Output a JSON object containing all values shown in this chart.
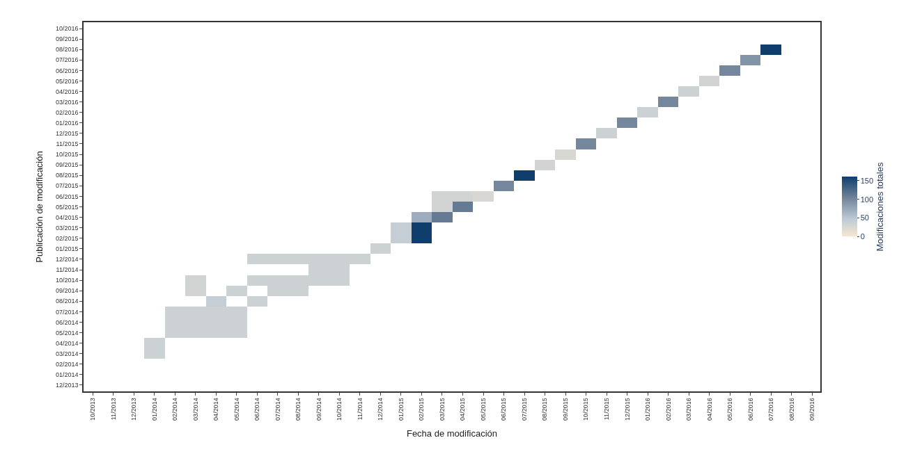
{
  "chart_data": {
    "type": "heatmap",
    "xlabel": "Fecha de modificación",
    "ylabel": "Publicación de modificación",
    "clabel": "Modificaciones totales",
    "categories": [
      "10/2013",
      "11/2013",
      "12/2013",
      "01/2014",
      "02/2014",
      "03/2014",
      "04/2014",
      "05/2014",
      "06/2014",
      "07/2014",
      "08/2014",
      "09/2014",
      "10/2014",
      "11/2014",
      "12/2014",
      "01/2015",
      "02/2015",
      "03/2015",
      "04/2015",
      "05/2015",
      "06/2015",
      "07/2015",
      "08/2015",
      "09/2015",
      "10/2015",
      "11/2015",
      "12/2015",
      "01/2016",
      "02/2016",
      "03/2016",
      "04/2016",
      "05/2016",
      "06/2016",
      "07/2016",
      "08/2016",
      "09/2016"
    ],
    "y_categories": [
      "10/2016",
      "09/2016",
      "08/2016",
      "07/2016",
      "06/2016",
      "05/2016",
      "04/2016",
      "03/2016",
      "02/2016",
      "01/2016",
      "12/2015",
      "11/2015",
      "10/2015",
      "09/2015",
      "08/2015",
      "07/2015",
      "06/2015",
      "05/2015",
      "04/2015",
      "03/2015",
      "02/2015",
      "01/2015",
      "12/2014",
      "11/2014",
      "10/2014",
      "09/2014",
      "08/2014",
      "07/2014",
      "06/2014",
      "05/2014",
      "04/2014",
      "03/2014",
      "02/2014",
      "01/2014",
      "12/2013"
    ],
    "cells": [
      [
        null,
        null,
        null,
        null,
        null,
        null,
        null,
        null,
        null,
        null,
        null,
        null,
        null,
        null,
        null,
        null,
        null,
        null,
        null,
        null,
        null,
        null,
        null,
        null,
        null,
        null,
        null,
        null,
        null,
        null,
        null,
        null,
        null,
        null,
        null,
        null
      ],
      [
        null,
        null,
        null,
        null,
        null,
        null,
        null,
        null,
        null,
        null,
        null,
        null,
        null,
        null,
        null,
        null,
        null,
        null,
        null,
        null,
        null,
        null,
        null,
        null,
        null,
        null,
        null,
        null,
        null,
        null,
        null,
        null,
        null,
        null,
        null,
        null
      ],
      [
        null,
        null,
        null,
        null,
        null,
        null,
        null,
        null,
        null,
        null,
        null,
        null,
        null,
        null,
        null,
        null,
        null,
        null,
        null,
        null,
        null,
        null,
        null,
        null,
        null,
        null,
        null,
        null,
        null,
        null,
        null,
        null,
        null,
        160,
        null,
        null
      ],
      [
        null,
        null,
        null,
        null,
        null,
        null,
        null,
        null,
        null,
        null,
        null,
        null,
        null,
        null,
        null,
        null,
        null,
        null,
        null,
        null,
        null,
        null,
        null,
        null,
        null,
        null,
        null,
        null,
        null,
        null,
        null,
        null,
        90,
        null,
        null,
        null
      ],
      [
        null,
        null,
        null,
        null,
        null,
        null,
        null,
        null,
        null,
        null,
        null,
        null,
        null,
        null,
        null,
        null,
        null,
        null,
        null,
        null,
        null,
        null,
        null,
        null,
        null,
        null,
        null,
        null,
        null,
        null,
        null,
        100,
        null,
        null,
        null,
        null
      ],
      [
        null,
        null,
        null,
        null,
        null,
        null,
        null,
        null,
        null,
        null,
        null,
        null,
        null,
        null,
        null,
        null,
        null,
        null,
        null,
        null,
        null,
        null,
        null,
        null,
        null,
        null,
        null,
        null,
        null,
        null,
        30,
        null,
        null,
        null,
        null,
        null
      ],
      [
        null,
        null,
        null,
        null,
        null,
        null,
        null,
        null,
        null,
        null,
        null,
        null,
        null,
        null,
        null,
        null,
        null,
        null,
        null,
        null,
        null,
        null,
        null,
        null,
        null,
        null,
        null,
        null,
        null,
        35,
        null,
        null,
        null,
        null,
        null,
        null
      ],
      [
        null,
        null,
        null,
        null,
        null,
        null,
        null,
        null,
        null,
        null,
        null,
        null,
        null,
        null,
        null,
        null,
        null,
        null,
        null,
        null,
        null,
        null,
        null,
        null,
        null,
        null,
        null,
        null,
        100,
        null,
        null,
        null,
        null,
        null,
        null,
        null
      ],
      [
        null,
        null,
        null,
        null,
        null,
        null,
        null,
        null,
        null,
        null,
        null,
        null,
        null,
        null,
        null,
        null,
        null,
        null,
        null,
        null,
        null,
        null,
        null,
        null,
        null,
        null,
        null,
        35,
        null,
        null,
        null,
        null,
        null,
        null,
        null,
        null
      ],
      [
        null,
        null,
        null,
        null,
        null,
        null,
        null,
        null,
        null,
        null,
        null,
        null,
        null,
        null,
        null,
        null,
        null,
        null,
        null,
        null,
        null,
        null,
        null,
        null,
        null,
        null,
        100,
        null,
        null,
        null,
        null,
        null,
        null,
        null,
        null,
        null
      ],
      [
        null,
        null,
        null,
        null,
        null,
        null,
        null,
        null,
        null,
        null,
        null,
        null,
        null,
        null,
        null,
        null,
        null,
        null,
        null,
        null,
        null,
        null,
        null,
        null,
        null,
        35,
        null,
        null,
        null,
        null,
        null,
        null,
        null,
        null,
        null,
        null
      ],
      [
        null,
        null,
        null,
        null,
        null,
        null,
        null,
        null,
        null,
        null,
        null,
        null,
        null,
        null,
        null,
        null,
        null,
        null,
        null,
        null,
        null,
        null,
        null,
        null,
        100,
        null,
        null,
        null,
        null,
        null,
        null,
        null,
        null,
        null,
        null,
        null
      ],
      [
        null,
        null,
        null,
        null,
        null,
        null,
        null,
        null,
        null,
        null,
        null,
        null,
        null,
        null,
        null,
        null,
        null,
        null,
        null,
        null,
        null,
        null,
        null,
        25,
        null,
        null,
        null,
        null,
        null,
        null,
        null,
        null,
        null,
        null,
        null,
        null
      ],
      [
        null,
        null,
        null,
        null,
        null,
        null,
        null,
        null,
        null,
        null,
        null,
        null,
        null,
        null,
        null,
        null,
        null,
        null,
        null,
        null,
        null,
        null,
        30,
        null,
        null,
        null,
        null,
        null,
        null,
        null,
        null,
        null,
        null,
        null,
        null,
        null
      ],
      [
        null,
        null,
        null,
        null,
        null,
        null,
        null,
        null,
        null,
        null,
        null,
        null,
        null,
        null,
        null,
        null,
        null,
        null,
        null,
        null,
        null,
        160,
        null,
        null,
        null,
        null,
        null,
        null,
        null,
        null,
        null,
        null,
        null,
        null,
        null,
        null
      ],
      [
        null,
        null,
        null,
        null,
        null,
        null,
        null,
        null,
        null,
        null,
        null,
        null,
        null,
        null,
        null,
        null,
        null,
        null,
        null,
        null,
        100,
        null,
        null,
        null,
        null,
        null,
        null,
        null,
        null,
        null,
        null,
        null,
        null,
        null,
        null,
        null
      ],
      [
        null,
        null,
        null,
        null,
        null,
        null,
        null,
        null,
        null,
        null,
        null,
        null,
        null,
        null,
        null,
        null,
        null,
        30,
        30,
        25,
        null,
        null,
        null,
        null,
        null,
        null,
        null,
        null,
        null,
        null,
        null,
        null,
        null,
        null,
        null,
        null
      ],
      [
        null,
        null,
        null,
        null,
        null,
        null,
        null,
        null,
        null,
        null,
        null,
        null,
        null,
        null,
        null,
        null,
        null,
        30,
        110,
        null,
        null,
        null,
        null,
        null,
        null,
        null,
        null,
        null,
        null,
        null,
        null,
        null,
        null,
        null,
        null,
        null
      ],
      [
        null,
        null,
        null,
        null,
        null,
        null,
        null,
        null,
        null,
        null,
        null,
        null,
        null,
        null,
        null,
        null,
        70,
        110,
        null,
        null,
        null,
        null,
        null,
        null,
        null,
        null,
        null,
        null,
        null,
        null,
        null,
        null,
        null,
        null,
        null,
        null
      ],
      [
        null,
        null,
        null,
        null,
        null,
        null,
        null,
        null,
        null,
        null,
        null,
        null,
        null,
        null,
        null,
        40,
        160,
        null,
        null,
        null,
        null,
        null,
        null,
        null,
        null,
        null,
        null,
        null,
        null,
        null,
        null,
        null,
        null,
        null,
        null,
        null
      ],
      [
        null,
        null,
        null,
        null,
        null,
        null,
        null,
        null,
        null,
        null,
        null,
        null,
        null,
        null,
        null,
        40,
        160,
        null,
        null,
        null,
        null,
        null,
        null,
        null,
        null,
        null,
        null,
        null,
        null,
        null,
        null,
        null,
        null,
        null,
        null,
        null
      ],
      [
        null,
        null,
        null,
        null,
        null,
        null,
        null,
        null,
        null,
        null,
        null,
        null,
        null,
        null,
        35,
        null,
        null,
        null,
        null,
        null,
        null,
        null,
        null,
        null,
        null,
        null,
        null,
        null,
        null,
        null,
        null,
        null,
        null,
        null,
        null,
        null
      ],
      [
        null,
        null,
        null,
        null,
        null,
        null,
        null,
        null,
        35,
        35,
        35,
        35,
        35,
        35,
        null,
        null,
        null,
        null,
        null,
        null,
        null,
        null,
        null,
        null,
        null,
        null,
        null,
        null,
        null,
        null,
        null,
        null,
        null,
        null,
        null,
        null
      ],
      [
        null,
        null,
        null,
        null,
        null,
        null,
        null,
        null,
        null,
        null,
        null,
        35,
        35,
        null,
        null,
        null,
        null,
        null,
        null,
        null,
        null,
        null,
        null,
        null,
        null,
        null,
        null,
        null,
        null,
        null,
        null,
        null,
        null,
        null,
        null,
        null
      ],
      [
        null,
        null,
        null,
        null,
        null,
        30,
        null,
        null,
        35,
        35,
        35,
        35,
        35,
        null,
        null,
        null,
        null,
        null,
        null,
        null,
        null,
        null,
        null,
        null,
        null,
        null,
        null,
        null,
        null,
        null,
        null,
        null,
        null,
        null,
        null,
        null
      ],
      [
        null,
        null,
        null,
        null,
        null,
        30,
        null,
        35,
        null,
        35,
        35,
        null,
        null,
        null,
        null,
        null,
        null,
        null,
        null,
        null,
        null,
        null,
        null,
        null,
        null,
        null,
        null,
        null,
        null,
        null,
        null,
        null,
        null,
        null,
        null,
        null
      ],
      [
        null,
        null,
        null,
        null,
        null,
        null,
        40,
        null,
        35,
        null,
        null,
        null,
        null,
        null,
        null,
        null,
        null,
        null,
        null,
        null,
        null,
        null,
        null,
        null,
        null,
        null,
        null,
        null,
        null,
        null,
        null,
        null,
        null,
        null,
        null,
        null
      ],
      [
        null,
        null,
        null,
        null,
        35,
        35,
        35,
        35,
        null,
        null,
        null,
        null,
        null,
        null,
        null,
        null,
        null,
        null,
        null,
        null,
        null,
        null,
        null,
        null,
        null,
        null,
        null,
        null,
        null,
        null,
        null,
        null,
        null,
        null,
        null,
        null
      ],
      [
        null,
        null,
        null,
        null,
        35,
        35,
        35,
        35,
        null,
        null,
        null,
        null,
        null,
        null,
        null,
        null,
        null,
        null,
        null,
        null,
        null,
        null,
        null,
        null,
        null,
        null,
        null,
        null,
        null,
        null,
        null,
        null,
        null,
        null,
        null,
        null
      ],
      [
        null,
        null,
        null,
        null,
        35,
        35,
        35,
        35,
        null,
        null,
        null,
        null,
        null,
        null,
        null,
        null,
        null,
        null,
        null,
        null,
        null,
        null,
        null,
        null,
        null,
        null,
        null,
        null,
        null,
        null,
        null,
        null,
        null,
        null,
        null,
        null
      ],
      [
        null,
        null,
        null,
        35,
        null,
        null,
        null,
        null,
        null,
        null,
        null,
        null,
        null,
        null,
        null,
        null,
        null,
        null,
        null,
        null,
        null,
        null,
        null,
        null,
        null,
        null,
        null,
        null,
        null,
        null,
        null,
        null,
        null,
        null,
        null,
        null
      ],
      [
        null,
        null,
        null,
        35,
        null,
        null,
        null,
        null,
        null,
        null,
        null,
        null,
        null,
        null,
        null,
        null,
        null,
        null,
        null,
        null,
        null,
        null,
        null,
        null,
        null,
        null,
        null,
        null,
        null,
        null,
        null,
        null,
        null,
        null,
        null,
        null
      ],
      [
        null,
        null,
        null,
        null,
        null,
        null,
        null,
        null,
        null,
        null,
        null,
        null,
        null,
        null,
        null,
        null,
        null,
        null,
        null,
        null,
        null,
        null,
        null,
        null,
        null,
        null,
        null,
        null,
        null,
        null,
        null,
        null,
        null,
        null,
        null,
        null
      ],
      [
        null,
        null,
        null,
        null,
        null,
        null,
        null,
        null,
        null,
        null,
        null,
        null,
        null,
        null,
        null,
        null,
        null,
        null,
        null,
        null,
        null,
        null,
        null,
        null,
        null,
        null,
        null,
        null,
        null,
        null,
        null,
        null,
        null,
        null,
        null,
        null
      ],
      [
        null,
        null,
        null,
        null,
        null,
        null,
        null,
        null,
        null,
        null,
        null,
        null,
        null,
        null,
        null,
        null,
        null,
        null,
        null,
        null,
        null,
        null,
        null,
        null,
        null,
        null,
        null,
        null,
        null,
        null,
        null,
        null,
        null,
        null,
        null,
        null
      ]
    ],
    "clim": [
      0,
      160
    ],
    "cticks": [
      0,
      50,
      100,
      150
    ]
  }
}
